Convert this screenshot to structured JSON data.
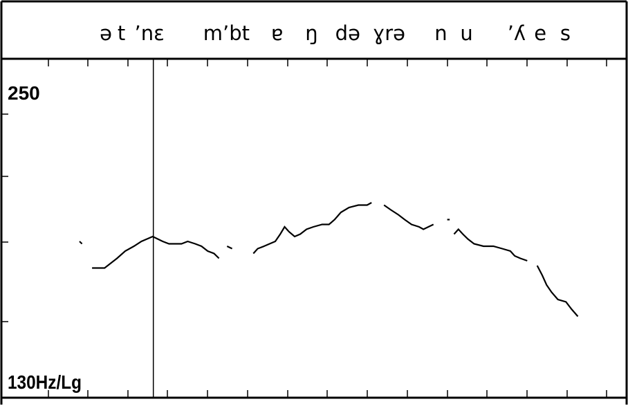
{
  "chart_data": {
    "type": "line",
    "title": "",
    "xlabel": "",
    "ylabel": "",
    "y_top_label": "250",
    "y_bottom_label": "130Hz/Lg",
    "ylim": [
      130,
      250
    ],
    "x_range": [
      0,
      100
    ],
    "grid": false,
    "segments": [
      {
        "text": "ə",
        "x": 16.7
      },
      {
        "text": "t",
        "x": 19.2
      },
      {
        "text": "ʼnɛ",
        "x": 23.7
      },
      {
        "text": "mʼbt",
        "x": 36.0
      },
      {
        "text": "ɐ",
        "x": 44.1
      },
      {
        "text": "ŋ",
        "x": 49.6
      },
      {
        "text": "də",
        "x": 55.4
      },
      {
        "text": "ɣrə",
        "x": 62.0
      },
      {
        "text": "n",
        "x": 70.3
      },
      {
        "text": "u",
        "x": 74.4
      },
      {
        "text": "ʼʎ",
        "x": 82.4
      },
      {
        "text": "e",
        "x": 86.2
      },
      {
        "text": "s",
        "x": 90.2
      }
    ],
    "cursor_x": 24.3,
    "series": [
      {
        "points": [
          [
            12.5,
            186
          ],
          [
            12.9,
            185
          ]
        ]
      },
      {
        "points": [
          [
            14.5,
            175
          ],
          [
            16.5,
            175
          ],
          [
            17.5,
            177
          ],
          [
            18.5,
            179
          ],
          [
            19.8,
            182
          ],
          [
            21.2,
            184
          ],
          [
            22.4,
            186
          ],
          [
            23.3,
            187
          ],
          [
            24.2,
            188
          ],
          [
            25.0,
            187
          ],
          [
            25.8,
            186
          ],
          [
            26.8,
            185
          ],
          [
            27.8,
            185
          ],
          [
            28.8,
            185
          ],
          [
            29.8,
            186
          ],
          [
            31.0,
            185
          ],
          [
            32.0,
            184
          ],
          [
            33.0,
            182
          ],
          [
            34.0,
            181
          ],
          [
            34.8,
            179
          ]
        ]
      },
      {
        "points": [
          [
            36.1,
            184
          ],
          [
            36.9,
            183
          ]
        ]
      },
      {
        "points": [
          [
            40.3,
            181
          ],
          [
            41.0,
            183
          ],
          [
            42.0,
            184
          ],
          [
            42.9,
            185
          ],
          [
            43.8,
            186
          ],
          [
            44.6,
            189
          ],
          [
            45.3,
            192
          ],
          [
            46.0,
            190
          ],
          [
            46.9,
            188
          ],
          [
            47.8,
            189
          ],
          [
            48.8,
            191
          ],
          [
            49.9,
            192
          ],
          [
            51.3,
            193
          ],
          [
            52.4,
            193
          ],
          [
            53.3,
            195
          ],
          [
            54.3,
            198
          ],
          [
            55.6,
            200
          ],
          [
            57.1,
            201
          ],
          [
            58.5,
            201
          ],
          [
            59.2,
            202
          ]
        ]
      },
      {
        "points": [
          [
            61.2,
            201
          ],
          [
            62.3,
            199
          ],
          [
            63.5,
            197
          ],
          [
            64.5,
            195
          ],
          [
            65.6,
            193
          ],
          [
            66.8,
            192
          ],
          [
            67.5,
            191
          ],
          [
            68.3,
            192
          ],
          [
            69.1,
            193
          ]
        ]
      },
      {
        "points": [
          [
            71.3,
            195
          ],
          [
            71.7,
            195
          ]
        ]
      },
      {
        "points": [
          [
            72.4,
            189
          ],
          [
            73.1,
            191
          ],
          [
            73.8,
            189
          ],
          [
            74.6,
            187
          ],
          [
            75.6,
            185
          ],
          [
            77.1,
            184
          ],
          [
            78.7,
            184
          ],
          [
            80.1,
            183
          ],
          [
            81.4,
            182
          ],
          [
            82.1,
            180
          ],
          [
            83.0,
            179
          ],
          [
            84.1,
            178
          ]
        ]
      },
      {
        "points": [
          [
            85.7,
            176
          ],
          [
            86.5,
            172
          ],
          [
            87.2,
            168
          ],
          [
            88.0,
            165
          ],
          [
            89.0,
            162
          ],
          [
            90.3,
            161
          ],
          [
            91.2,
            158
          ],
          [
            92.2,
            155
          ]
        ]
      }
    ]
  }
}
